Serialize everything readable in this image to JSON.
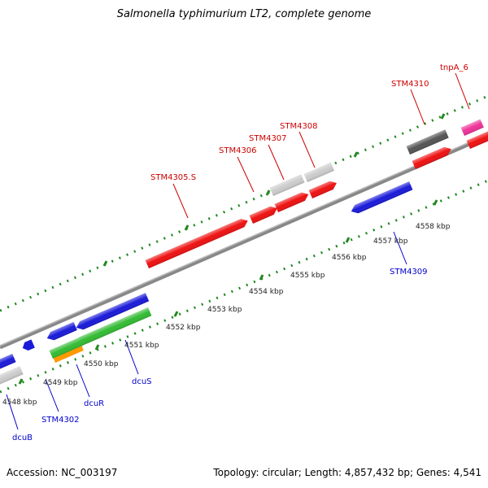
{
  "title": "Salmonella typhimurium LT2, complete genome",
  "footer": {
    "accession": "Accession: NC_003197",
    "summary": "Topology: circular; Length: 4,857,432 bp; Genes: 4,541"
  },
  "kbp_labels": [
    "4548 kbp",
    "4549 kbp",
    "4550 kbp",
    "4551 kbp",
    "4552 kbp",
    "4553 kbp",
    "4554 kbp",
    "4555 kbp",
    "4556 kbp",
    "4557 kbp",
    "4558 kbp"
  ],
  "genes_forward": [
    "STM4305.S",
    "STM4306",
    "STM4307",
    "STM4308",
    "STM4310",
    "tnpA_6"
  ],
  "genes_reverse": [
    "dcuB",
    "STM4302",
    "dcuR",
    "dcuS",
    "STM4309"
  ],
  "colors": {
    "forward_label": "#cc0000",
    "reverse_label": "#0000cc",
    "red": "#ee1111",
    "blue": "#1a1ad9",
    "green": "#33bb33",
    "orange": "#ff9900",
    "light_gray": "#cccccc",
    "dark_gray": "#555555",
    "magenta": "#ee3399",
    "ticks": "#228822",
    "backbone": "#888888"
  }
}
